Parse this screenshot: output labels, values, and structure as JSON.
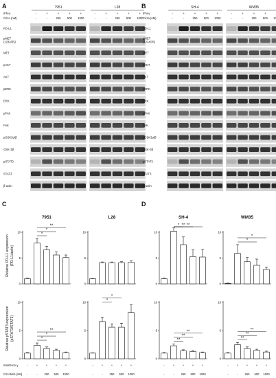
{
  "panels": {
    "A": "A",
    "B": "B",
    "C": "C",
    "D": "D"
  },
  "blotA": {
    "cell_lines": [
      "7951",
      "L28"
    ],
    "treatment_rows": {
      "ifn": "IFN-γ",
      "criz": "Crizo (nM)"
    },
    "ifn_signs": [
      "-",
      "+",
      "+",
      "+",
      "+"
    ],
    "criz_values": [
      "-",
      "-",
      "250",
      "500",
      "1000"
    ],
    "proteins": [
      "PD-L1",
      "pMET (1234/35)",
      "MET",
      "pAKT",
      "AKT",
      "pERK",
      "ERK",
      "pFAK",
      "FAK",
      "pGSK3α/β",
      "GSK-3β",
      "pSTAT3",
      "STAT3",
      "β-actin"
    ]
  },
  "blotB": {
    "cell_lines": [
      "SH-4",
      "WM35"
    ],
    "treatment_rows": {
      "ifn": "IFN-γ",
      "criz": "Criza (nM)"
    },
    "ifn_signs": [
      "-",
      "+",
      "+",
      "+",
      "+"
    ],
    "criz_values": [
      "-",
      "-",
      "250",
      "500",
      "1000"
    ],
    "proteins": [
      "PD-L1",
      "pMET (1234/35)",
      "MET",
      "pAKT",
      "AKT",
      "pERK",
      "ERK",
      "pFAK",
      "FAK",
      "pGSK3α/β",
      "GSK-3β",
      "pSTAT3",
      "STAT3",
      "β-actin"
    ]
  },
  "y_labels": {
    "pdl1_line1": "Relative PD-L1 expression",
    "pdl1_line2": "(PD-L1/actin)",
    "pstat3_line1": "Relative pSTAT3 expression",
    "pstat3_line2": "(pSTAT3/STAT3)"
  },
  "x_rows": {
    "interferon": "Interferon-γ",
    "crizotinib": "Crizotinib (nM)",
    "signs": [
      "-",
      "+",
      "+",
      "+",
      "+"
    ],
    "doses": [
      "-",
      "-",
      "250",
      "500",
      "1000"
    ]
  },
  "chart_data": [
    {
      "type": "bar",
      "title": "7951",
      "ylabel": "Relative PD-L1 expression (PD-L1/actin)",
      "ylim": [
        0,
        10
      ],
      "yticks": [
        0,
        5,
        10
      ],
      "categories": [
        "-/-",
        "+/-",
        "+/250",
        "+/500",
        "+/1000"
      ],
      "values": [
        1.0,
        7.9,
        6.6,
        5.6,
        5.1
      ],
      "errors": [
        0.1,
        0.9,
        0.7,
        0.6,
        0.5
      ],
      "significance": [
        {
          "from": 1,
          "to": 2,
          "label": "*"
        },
        {
          "from": 1,
          "to": 3,
          "label": "*"
        },
        {
          "from": 1,
          "to": 4,
          "label": "**"
        }
      ]
    },
    {
      "type": "bar",
      "title": "L28",
      "ylim": [
        0,
        10
      ],
      "yticks": [
        0,
        5,
        10
      ],
      "categories": [
        "-/-",
        "+/-",
        "+/250",
        "+/500",
        "+/1000"
      ],
      "values": [
        1.0,
        4.1,
        4.1,
        4.1,
        4.2
      ],
      "errors": [
        0.05,
        0.15,
        0.15,
        0.2,
        0.25
      ],
      "significance": []
    },
    {
      "type": "bar",
      "title": "SH-4",
      "ylim": [
        0,
        10
      ],
      "yticks": [
        0,
        5,
        10
      ],
      "categories": [
        "-/-",
        "+/-",
        "+/250",
        "+/500",
        "+/1000"
      ],
      "values": [
        1.0,
        10.2,
        7.6,
        5.3,
        5.2
      ],
      "errors": [
        0.1,
        0.7,
        1.5,
        1.3,
        1.5
      ],
      "significance": [
        {
          "from": 1,
          "to": 2,
          "label": "*"
        },
        {
          "from": 1,
          "to": 3,
          "label": "**"
        },
        {
          "from": 1,
          "to": 4,
          "label": "**"
        }
      ]
    },
    {
      "type": "bar",
      "title": "WM35",
      "ylim": [
        0,
        10
      ],
      "yticks": [
        0,
        5,
        10
      ],
      "categories": [
        "-/-",
        "+/-",
        "+/250",
        "+/500",
        "+/1000"
      ],
      "values": [
        0.1,
        5.9,
        4.3,
        3.6,
        2.8
      ],
      "errors": [
        0.05,
        1.7,
        0.8,
        1.2,
        0.4
      ],
      "significance": [
        {
          "from": 1,
          "to": 3,
          "label": "*"
        },
        {
          "from": 1,
          "to": 4,
          "label": "*"
        }
      ]
    },
    {
      "type": "bar",
      "ylabel": "Relative pSTAT3 expression (pSTAT3/STAT3)",
      "ylim": [
        0,
        10
      ],
      "yticks": [
        0,
        5,
        10
      ],
      "categories": [
        "-/-",
        "+/-",
        "+/250",
        "+/500",
        "+/1000"
      ],
      "values": [
        1.0,
        2.4,
        1.8,
        1.5,
        1.1
      ],
      "errors": [
        0.1,
        0.4,
        0.3,
        0.2,
        0.1
      ],
      "significance": [
        {
          "from": 1,
          "to": 2,
          "label": "*"
        },
        {
          "from": 1,
          "to": 3,
          "label": "*"
        },
        {
          "from": 1,
          "to": 4,
          "label": "**"
        }
      ]
    },
    {
      "type": "bar",
      "ylim": [
        0,
        10
      ],
      "yticks": [
        0,
        5,
        10
      ],
      "categories": [
        "-/-",
        "+/-",
        "+/250",
        "+/500",
        "+/1000"
      ],
      "values": [
        1.0,
        6.6,
        5.6,
        5.6,
        8.2
      ],
      "errors": [
        0.05,
        0.8,
        0.6,
        0.7,
        1.4
      ],
      "significance": [
        {
          "from": 1,
          "to": 2,
          "label": "*"
        },
        {
          "from": 1,
          "to": 3,
          "label": "*"
        }
      ]
    },
    {
      "type": "bar",
      "ylim": [
        0,
        10
      ],
      "yticks": [
        0,
        5,
        10
      ],
      "categories": [
        "-/-",
        "+/-",
        "+/250",
        "+/500",
        "+/1000"
      ],
      "values": [
        1.0,
        2.3,
        1.4,
        1.3,
        1.1
      ],
      "errors": [
        0.1,
        0.3,
        0.2,
        0.15,
        0.1
      ],
      "significance": [
        {
          "from": 1,
          "to": 2,
          "label": "**"
        },
        {
          "from": 1,
          "to": 3,
          "label": "**"
        },
        {
          "from": 1,
          "to": 4,
          "label": "**"
        }
      ]
    },
    {
      "type": "bar",
      "ylim": [
        0,
        10
      ],
      "yticks": [
        0,
        5,
        10
      ],
      "categories": [
        "-/-",
        "+/-",
        "+/250",
        "+/500",
        "+/1000"
      ],
      "values": [
        1.0,
        2.5,
        1.8,
        1.5,
        1.2
      ],
      "errors": [
        0.1,
        0.4,
        0.3,
        0.2,
        0.15
      ],
      "significance": [
        {
          "from": 1,
          "to": 2,
          "label": "**"
        },
        {
          "from": 1,
          "to": 3,
          "label": "**"
        },
        {
          "from": 1,
          "to": 4,
          "label": "**"
        }
      ]
    }
  ]
}
